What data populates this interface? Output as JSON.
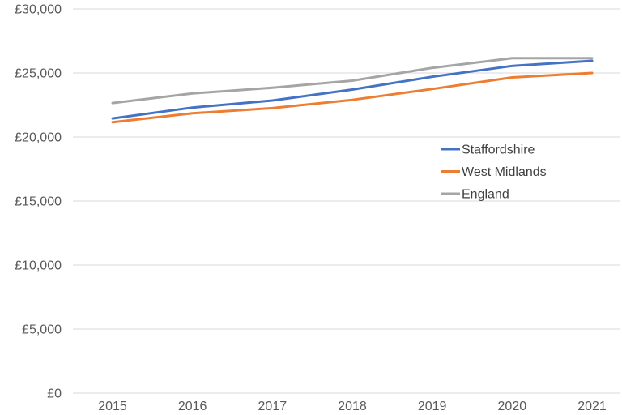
{
  "chart_data": {
    "type": "line",
    "x_labels": [
      "2015",
      "2016",
      "2017",
      "2018",
      "2019",
      "2020",
      "2021"
    ],
    "series": [
      {
        "name": "Staffordshire",
        "color": "#4472C4",
        "values": [
          21450,
          22300,
          22850,
          23700,
          24700,
          25550,
          25950
        ]
      },
      {
        "name": "West Midlands",
        "color": "#ED7D31",
        "values": [
          21150,
          21850,
          22250,
          22900,
          23750,
          24650,
          25000
        ]
      },
      {
        "name": "England",
        "color": "#A5A5A5",
        "values": [
          22650,
          23400,
          23850,
          24400,
          25400,
          26150,
          26150
        ]
      }
    ],
    "y_axis": {
      "min": 0,
      "max": 30000,
      "tick_step": 5000,
      "tick_labels": [
        "£0",
        "£5,000",
        "£10,000",
        "£15,000",
        "£20,000",
        "£25,000",
        "£30,000"
      ]
    },
    "legend": {
      "position": "middle-right",
      "entries": [
        "Staffordshire",
        "West Midlands",
        "England"
      ]
    },
    "grid": true
  },
  "colors": {
    "axis_text": "#595959",
    "legend_text": "#404040",
    "gridline": "#D9D9D9",
    "background": "#FFFFFF"
  }
}
